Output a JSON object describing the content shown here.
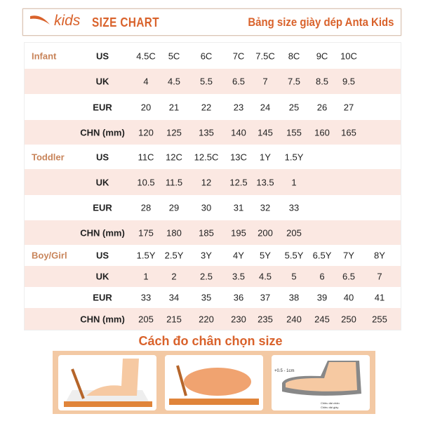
{
  "header": {
    "brand": "kids",
    "title": "SIZE CHART",
    "subtitle": "Bảng size giày dép Anta Kids",
    "accent": "#d9622b"
  },
  "groups": [
    {
      "name": "Infant",
      "rows": [
        {
          "type": "US",
          "values": [
            "4.5C",
            "5C",
            "6C",
            "7C",
            "7.5C",
            "8C",
            "9C",
            "10C"
          ]
        },
        {
          "type": "UK",
          "values": [
            "4",
            "4.5",
            "5.5",
            "6.5",
            "7",
            "7.5",
            "8.5",
            "9.5"
          ]
        },
        {
          "type": "EUR",
          "values": [
            "20",
            "21",
            "22",
            "23",
            "24",
            "25",
            "26",
            "27"
          ]
        },
        {
          "type": "CHN (mm)",
          "values": [
            "120",
            "125",
            "135",
            "140",
            "145",
            "155",
            "160",
            "165"
          ]
        }
      ]
    },
    {
      "name": "Toddler",
      "rows": [
        {
          "type": "US",
          "values": [
            "11C",
            "12C",
            "12.5C",
            "13C",
            "1Y",
            "1.5Y"
          ]
        },
        {
          "type": "UK",
          "values": [
            "10.5",
            "11.5",
            "12",
            "12.5",
            "13.5",
            "1"
          ]
        },
        {
          "type": "EUR",
          "values": [
            "28",
            "29",
            "30",
            "31",
            "32",
            "33"
          ]
        },
        {
          "type": "CHN (mm)",
          "values": [
            "175",
            "180",
            "185",
            "195",
            "200",
            "205"
          ]
        }
      ]
    },
    {
      "name": "Boy/Girl",
      "rows": [
        {
          "type": "US",
          "values": [
            "1.5Y",
            "2.5Y",
            "3Y",
            "4Y",
            "5Y",
            "5.5Y",
            "6.5Y",
            "7Y",
            "8Y"
          ]
        },
        {
          "type": "UK",
          "values": [
            "1",
            "2",
            "2.5",
            "3.5",
            "4.5",
            "5",
            "6",
            "6.5",
            "7"
          ]
        },
        {
          "type": "EUR",
          "values": [
            "33",
            "34",
            "35",
            "36",
            "37",
            "38",
            "39",
            "40",
            "41"
          ]
        },
        {
          "type": "CHN (mm)",
          "values": [
            "205",
            "215",
            "220",
            "230",
            "235",
            "240",
            "245",
            "250",
            "255"
          ]
        }
      ]
    }
  ],
  "guide": {
    "title": "Cách đo chân chọn size",
    "allowance": "+0.5 - 1cm",
    "foot_length": "Chiều dài chân",
    "shoe_length": "Chiều dài giày"
  }
}
